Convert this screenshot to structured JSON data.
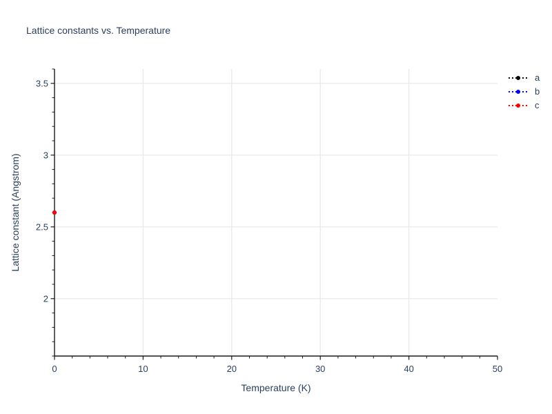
{
  "chart_data": {
    "type": "scatter",
    "title": "Lattice constants vs. Temperature",
    "xaxis": {
      "label": "Temperature (K)",
      "range": [
        0,
        50
      ],
      "major_ticks": [
        0,
        10,
        20,
        30,
        40,
        50
      ],
      "tick_labels": [
        "0",
        "10",
        "20",
        "30",
        "40",
        "50"
      ],
      "minor_step": 2
    },
    "yaxis": {
      "label": "Lattice constant (Angstrom)",
      "range": [
        1.6,
        3.6
      ],
      "major_ticks": [
        2,
        2.5,
        3,
        3.5
      ],
      "tick_labels": [
        "2",
        "2.5",
        "3",
        "3.5"
      ],
      "minor_step": 0.1
    },
    "grid": {
      "x_values": [
        10,
        20,
        30,
        40
      ],
      "y_values": [
        2,
        2.5,
        3,
        3.5
      ],
      "color": "#e8e8e8",
      "on": true
    },
    "legend_position": "top-right",
    "legend": {
      "items": [
        {
          "label": "a",
          "color": "#000000"
        },
        {
          "label": "b",
          "color": "#0000ff"
        },
        {
          "label": "c",
          "color": "#ff0000"
        }
      ]
    },
    "series": [
      {
        "name": "a",
        "color": "#000000",
        "mode": "lines+markers",
        "line_style": "dotted",
        "x": [
          0
        ],
        "y": [
          2.6
        ]
      },
      {
        "name": "b",
        "color": "#0000ff",
        "mode": "lines+markers",
        "line_style": "dotted",
        "x": [
          0
        ],
        "y": [
          2.6
        ]
      },
      {
        "name": "c",
        "color": "#ff0000",
        "mode": "lines+markers",
        "line_style": "dotted",
        "x": [
          0
        ],
        "y": [
          2.6
        ]
      }
    ],
    "colors": {
      "text": "#2a3f5f",
      "axis": "#1a1a1a",
      "background": "#ffffff"
    }
  }
}
